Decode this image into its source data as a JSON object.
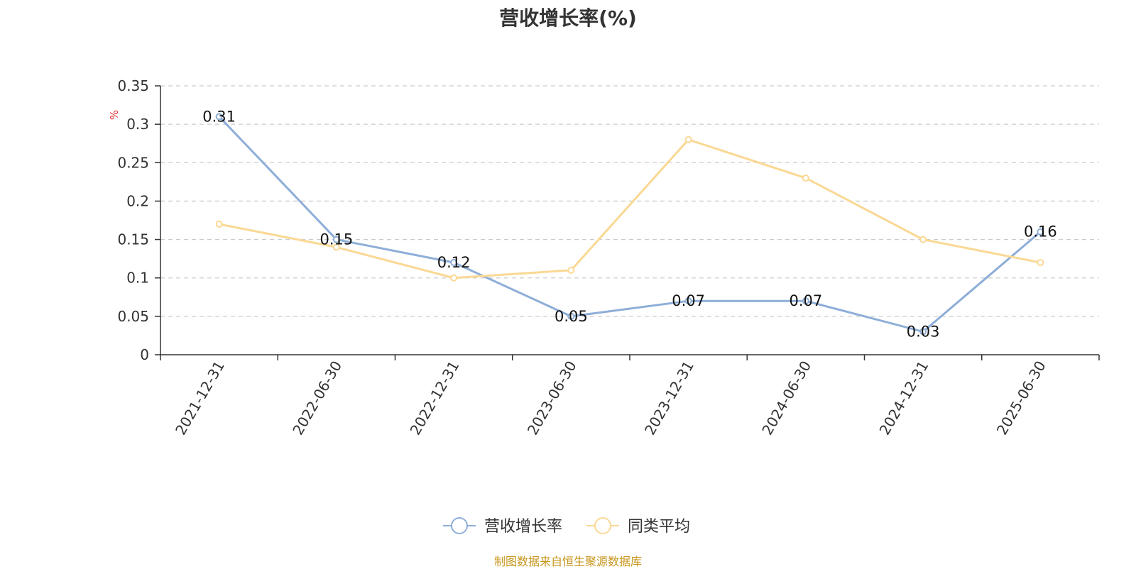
{
  "chart_data": {
    "type": "line",
    "title": "营收增长率(%)",
    "ylabel": "%",
    "categories": [
      "2021-12-31",
      "2022-06-30",
      "2022-12-31",
      "2023-06-30",
      "2023-12-31",
      "2024-06-30",
      "2024-12-31",
      "2025-06-30"
    ],
    "series": [
      {
        "name": "营收增长率",
        "values": [
          0.31,
          0.15,
          0.12,
          0.05,
          0.07,
          0.07,
          0.03,
          0.16
        ],
        "color": "#8eaed8",
        "show_labels": true
      },
      {
        "name": "同类平均",
        "values": [
          0.17,
          0.14,
          0.1,
          0.11,
          0.28,
          0.23,
          0.15,
          0.12
        ],
        "color": "#fad894",
        "show_labels": false
      }
    ],
    "ylim": [
      0,
      0.35
    ],
    "yticks": [
      0,
      0.05,
      0.1,
      0.15,
      0.2,
      0.25,
      0.3,
      0.35
    ],
    "ytick_labels": [
      "0",
      "0.05",
      "0.1",
      "0.15",
      "0.2",
      "0.25",
      "0.3",
      "0.35"
    ],
    "grid": true,
    "legend_position": "bottom-center"
  },
  "source_note": "制图数据来自恒生聚源数据库",
  "colors": {
    "title": "#333333",
    "axis": "#333333",
    "grid": "#cccccc",
    "ylabel": "#e03030",
    "source": "#c8961e"
  }
}
